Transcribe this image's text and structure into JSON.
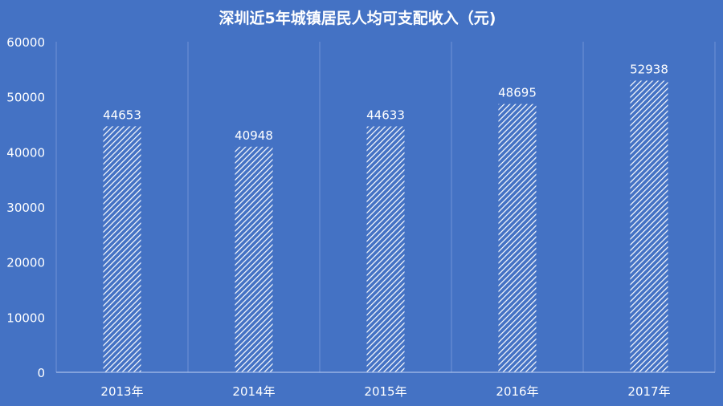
{
  "colors": {
    "background": "#4472C4",
    "bar_stripe": "#FFFFFF",
    "gridline": "#6F93D6",
    "axis": "#A9C0EA",
    "text": "#FFFFFF"
  },
  "chart_data": {
    "type": "bar",
    "title": "深圳近5年城镇居民人均可支配收入（元)",
    "xlabel": "",
    "ylabel": "",
    "categories": [
      "2013年",
      "2014年",
      "2015年",
      "2016年",
      "2017年"
    ],
    "values": [
      44653,
      40948,
      44633,
      48695,
      52938
    ],
    "ylim": [
      0,
      60000
    ],
    "yticks": [
      0,
      10000,
      20000,
      30000,
      40000,
      50000,
      60000
    ],
    "bar_fill": "diagonal-hatch",
    "grid": "vertical-category-separators",
    "legend": "none",
    "data_labels": true
  }
}
